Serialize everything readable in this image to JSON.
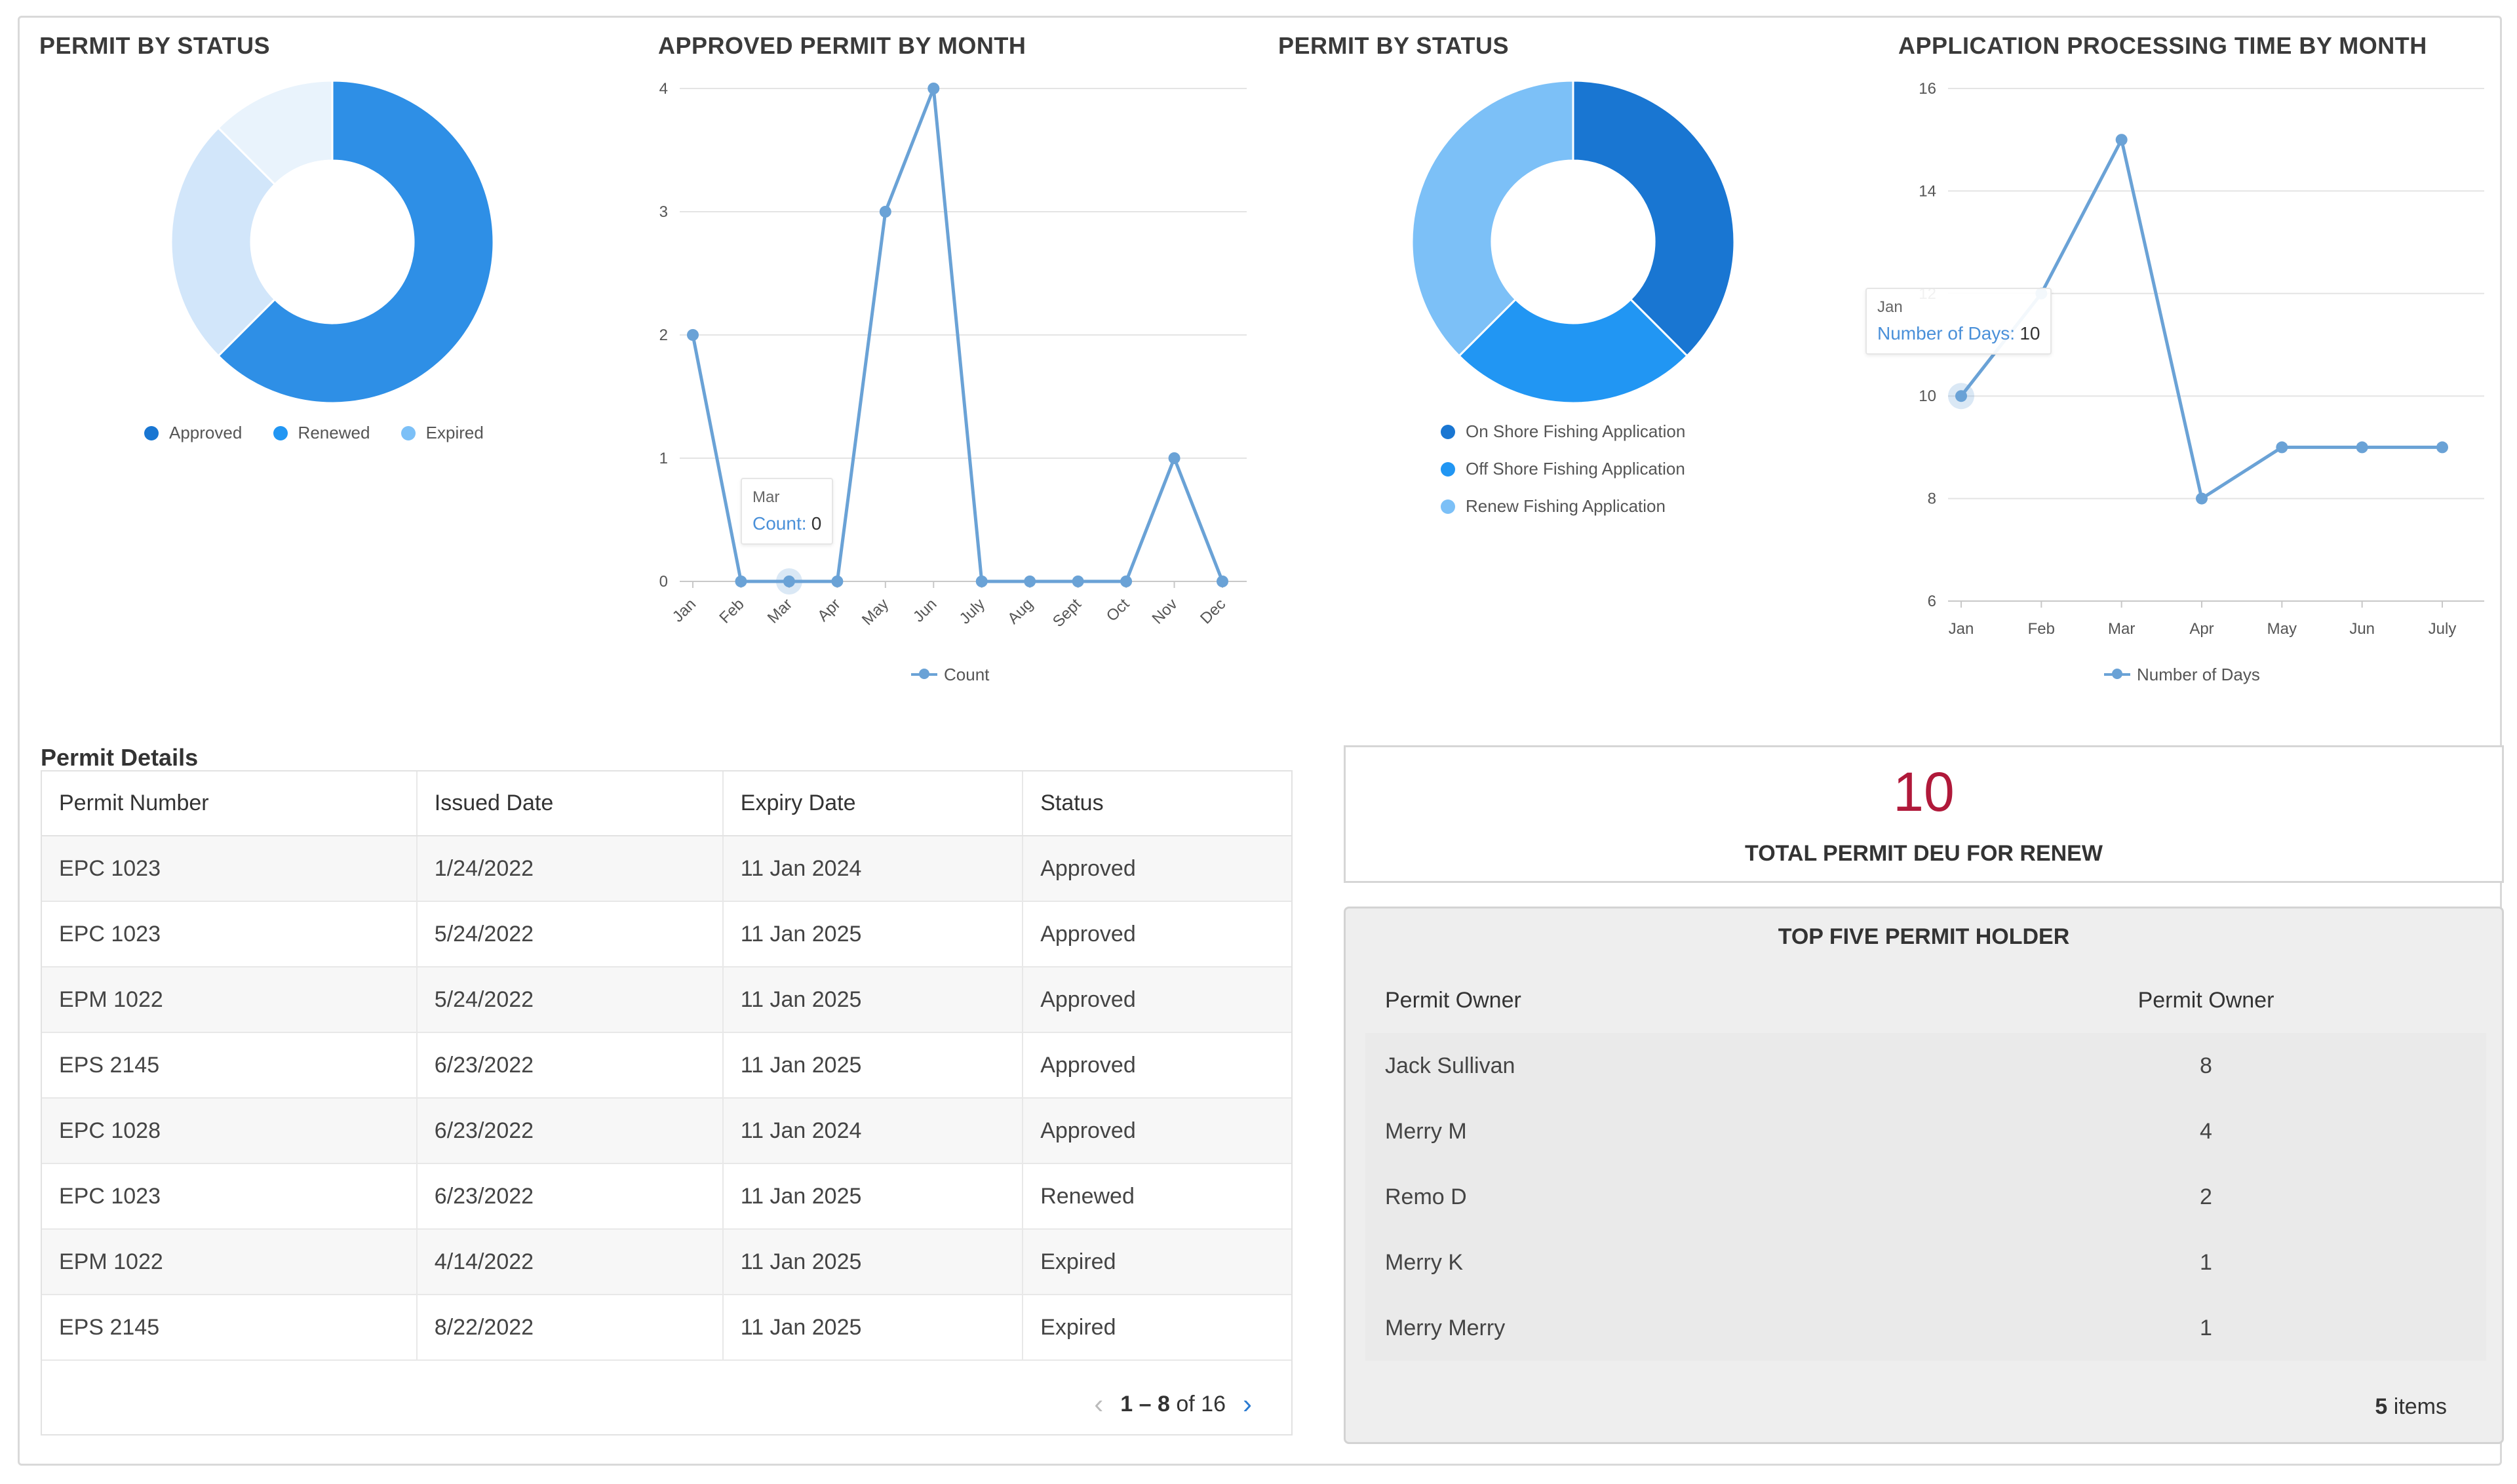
{
  "colors": {
    "dark_blue": "#1976d2",
    "blue": "#2196f3",
    "light_blue": "#7cc0f7",
    "donut1_main": "#2e8fe6",
    "donut1_mid": "#d2e6fa",
    "donut1_light": "#e9f3fc",
    "line": "#6aa2d6",
    "kpi": "#b0193a"
  },
  "charts": {
    "status1": {
      "title": "PERMIT BY STATUS",
      "legend": [
        "Approved",
        "Renewed",
        "Expired"
      ]
    },
    "monthly": {
      "title": "APPROVED PERMIT BY MONTH",
      "legend": "Count",
      "tooltip": {
        "month": "Mar",
        "key": "Count:",
        "value": "0"
      }
    },
    "status2": {
      "title": "PERMIT BY STATUS",
      "legend": [
        "On Shore Fishing Application",
        "Off Shore Fishing Application",
        "Renew Fishing Application"
      ]
    },
    "processing": {
      "title": "APPLICATION PROCESSING TIME BY MONTH",
      "legend": "Number of Days",
      "tooltip": {
        "month": "Jan",
        "key": "Number of Days:",
        "value": "10"
      }
    }
  },
  "chart_data": [
    {
      "type": "pie",
      "title": "PERMIT BY STATUS",
      "categories": [
        "Approved",
        "Renewed",
        "Expired"
      ],
      "values": [
        62.5,
        25,
        12.5
      ]
    },
    {
      "type": "line",
      "title": "APPROVED PERMIT BY MONTH",
      "categories": [
        "Jan",
        "Feb",
        "Mar",
        "Apr",
        "May",
        "Jun",
        "July",
        "Aug",
        "Sept",
        "Oct",
        "Nov",
        "Dec"
      ],
      "series": [
        {
          "name": "Count",
          "values": [
            2,
            0,
            0,
            0,
            3,
            4,
            0,
            0,
            0,
            0,
            1,
            0
          ]
        }
      ],
      "ylim": [
        0,
        4
      ],
      "yticks": [
        0,
        1,
        2,
        3,
        4
      ]
    },
    {
      "type": "pie",
      "title": "PERMIT BY STATUS",
      "categories": [
        "On Shore Fishing Application",
        "Off Shore Fishing Application",
        "Renew Fishing Application"
      ],
      "values": [
        37.5,
        25,
        37.5
      ]
    },
    {
      "type": "line",
      "title": "APPLICATION PROCESSING TIME BY MONTH",
      "categories": [
        "Jan",
        "Feb",
        "Mar",
        "Apr",
        "May",
        "Jun",
        "July"
      ],
      "series": [
        {
          "name": "Number of Days",
          "values": [
            10,
            12,
            15,
            8,
            9,
            9,
            9
          ]
        }
      ],
      "ylim": [
        6,
        16
      ],
      "yticks": [
        6,
        8,
        10,
        12,
        14,
        16
      ]
    }
  ],
  "permit_details": {
    "title": "Permit Details",
    "columns": [
      "Permit Number",
      "Issued Date",
      "Expiry Date",
      "Status"
    ],
    "rows": [
      [
        "EPC 1023",
        "1/24/2022",
        "11 Jan 2024",
        "Approved"
      ],
      [
        "EPC 1023",
        "5/24/2022",
        "11 Jan 2025",
        "Approved"
      ],
      [
        "EPM 1022",
        "5/24/2022",
        "11 Jan 2025",
        "Approved"
      ],
      [
        "EPS 2145",
        "6/23/2022",
        "11 Jan 2025",
        "Approved"
      ],
      [
        "EPC 1028",
        "6/23/2022",
        "11 Jan 2024",
        "Approved"
      ],
      [
        "EPC 1023",
        "6/23/2022",
        "11 Jan 2025",
        "Renewed"
      ],
      [
        "EPM 1022",
        "4/14/2022",
        "11 Jan 2025",
        "Expired"
      ],
      [
        "EPS 2145",
        "8/22/2022",
        "11 Jan 2025",
        "Expired"
      ]
    ],
    "pager": {
      "range": "1 – 8",
      "of_label": "of 16"
    }
  },
  "kpi": {
    "value": "10",
    "label": "TOTAL PERMIT DEU FOR RENEW"
  },
  "top_five": {
    "title": "TOP FIVE PERMIT HOLDER",
    "columns": [
      "Permit Owner",
      "Permit Owner"
    ],
    "rows": [
      [
        "Jack Sullivan",
        "8"
      ],
      [
        "Merry M",
        "4"
      ],
      [
        "Remo D",
        "2"
      ],
      [
        "Merry K",
        "1"
      ],
      [
        "Merry Merry",
        "1"
      ]
    ],
    "footer_count": "5",
    "footer_label": "items"
  }
}
